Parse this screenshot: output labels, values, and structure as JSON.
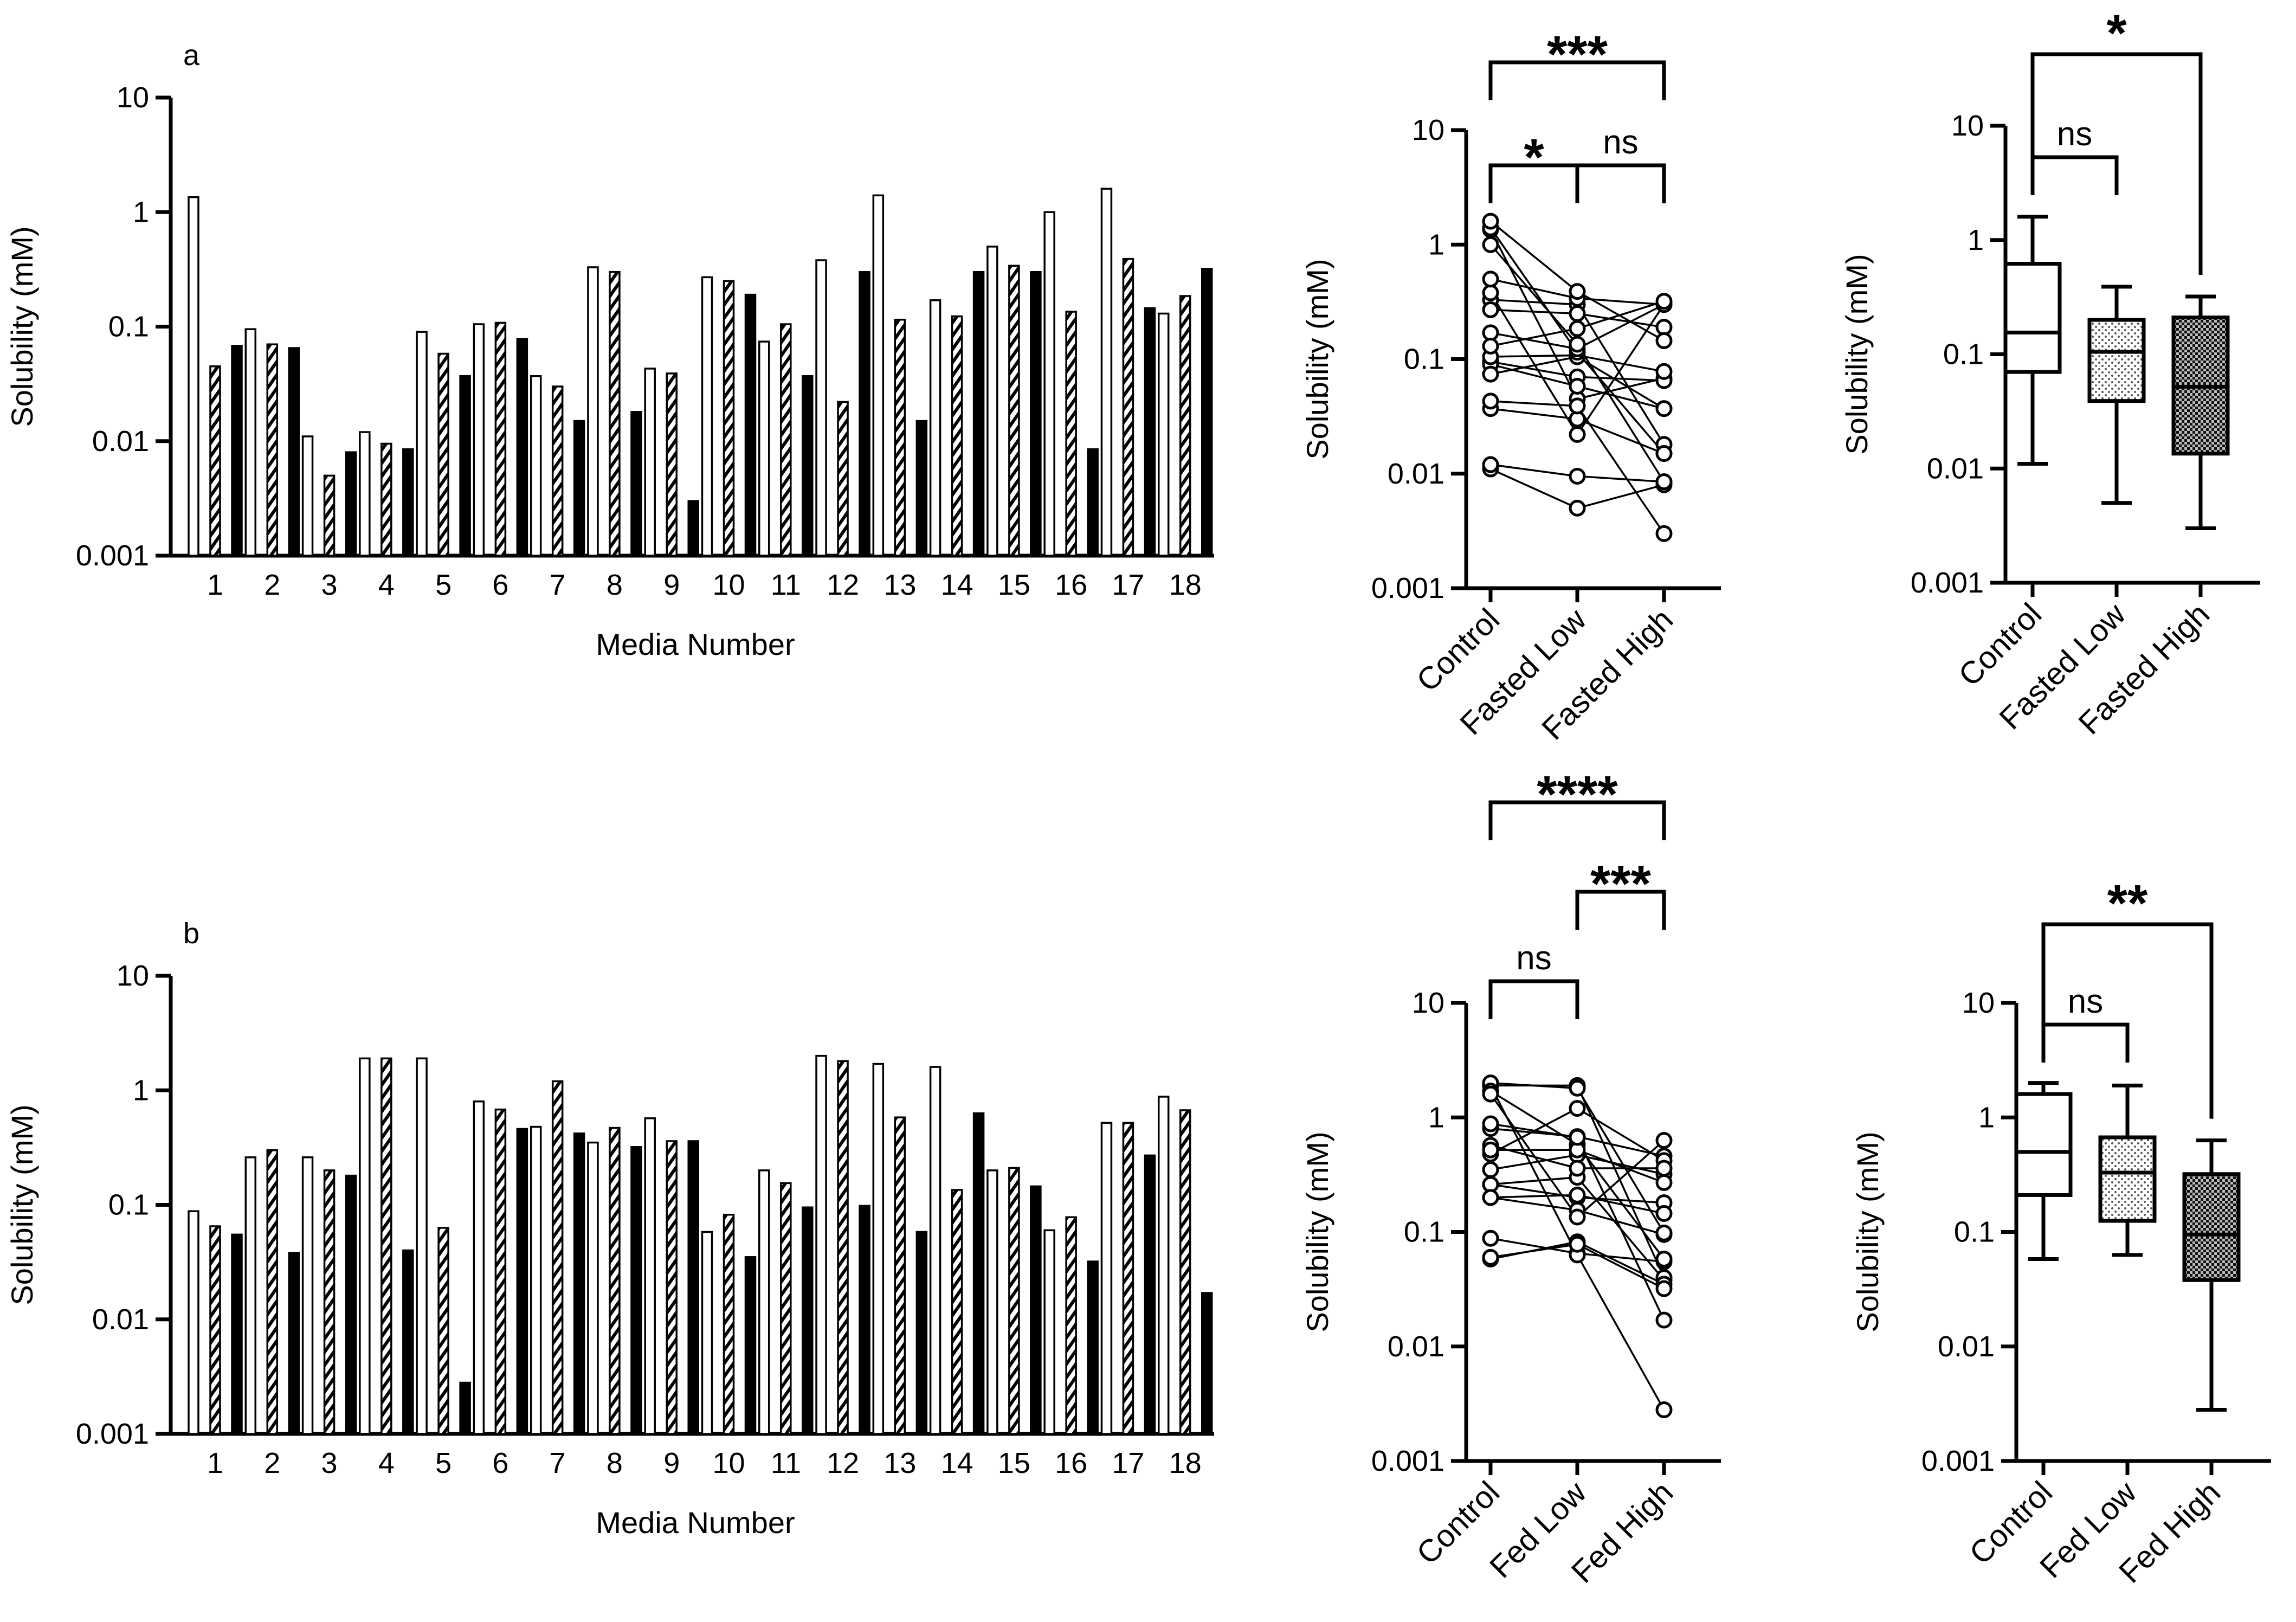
{
  "chart_data": [
    {
      "id": "a",
      "type": "bar",
      "panel_label": "a",
      "title": "",
      "xlabel": "Media Number",
      "ylabel": "Solubility (mM)",
      "yscale": "log",
      "ylim": [
        0.001,
        10
      ],
      "yticks": [
        "0.001",
        "0.01",
        "0.1",
        "1",
        "10"
      ],
      "categories": [
        "1",
        "2",
        "3",
        "4",
        "5",
        "6",
        "7",
        "8",
        "9",
        "10",
        "11",
        "12",
        "13",
        "14",
        "15",
        "16",
        "17",
        "18"
      ],
      "series": [
        {
          "name": "Control",
          "pattern": "open",
          "values": [
            1.35,
            0.095,
            0.011,
            0.012,
            0.09,
            0.105,
            0.037,
            0.33,
            0.043,
            0.27,
            0.074,
            0.38,
            1.4,
            0.17,
            0.5,
            1.0,
            1.6,
            0.13
          ]
        },
        {
          "name": "Fasted Low",
          "pattern": "hatched",
          "values": [
            0.045,
            0.07,
            0.005,
            0.0095,
            0.058,
            0.108,
            0.03,
            0.3,
            0.039,
            0.25,
            0.105,
            0.022,
            0.115,
            0.123,
            0.34,
            0.135,
            0.39,
            0.185
          ]
        },
        {
          "name": "Fasted High",
          "pattern": "filled",
          "values": [
            0.068,
            0.065,
            0.008,
            0.0085,
            0.037,
            0.078,
            0.015,
            0.018,
            0.003,
            0.19,
            0.037,
            0.3,
            0.015,
            0.3,
            0.3,
            0.0085,
            0.145,
            0.32
          ]
        }
      ]
    },
    {
      "id": "a-paired",
      "type": "scatter",
      "title": "",
      "ylabel": "Solubility (mM)",
      "yscale": "log",
      "ylim": [
        0.001,
        10
      ],
      "yticks": [
        "0.001",
        "0.01",
        "0.1",
        "1",
        "10"
      ],
      "categories": [
        "Control",
        "Fasted Low",
        "Fasted High"
      ],
      "pairs": [
        [
          1.35,
          0.045,
          0.068
        ],
        [
          0.095,
          0.07,
          0.065
        ],
        [
          0.011,
          0.005,
          0.008
        ],
        [
          0.012,
          0.0095,
          0.0085
        ],
        [
          0.09,
          0.058,
          0.037
        ],
        [
          0.105,
          0.108,
          0.078
        ],
        [
          0.037,
          0.03,
          0.015
        ],
        [
          0.33,
          0.3,
          0.018
        ],
        [
          0.043,
          0.039,
          0.003
        ],
        [
          0.27,
          0.25,
          0.19
        ],
        [
          0.074,
          0.105,
          0.037
        ],
        [
          0.38,
          0.022,
          0.3
        ],
        [
          1.4,
          0.115,
          0.015
        ],
        [
          0.17,
          0.123,
          0.3
        ],
        [
          0.5,
          0.34,
          0.3
        ],
        [
          1.0,
          0.135,
          0.0085
        ],
        [
          1.6,
          0.39,
          0.145
        ],
        [
          0.13,
          0.185,
          0.32
        ]
      ],
      "significance": [
        {
          "from": 0,
          "to": 2,
          "label": "***",
          "level": 0
        },
        {
          "from": 0,
          "to": 1,
          "label": "*",
          "level": 1
        },
        {
          "from": 1,
          "to": 2,
          "label": "ns",
          "level": 1
        }
      ]
    },
    {
      "id": "a-box",
      "type": "box",
      "title": "",
      "ylabel": "Solubility (mM)",
      "yscale": "log",
      "ylim": [
        0.001,
        10
      ],
      "yticks": [
        "0.001",
        "0.01",
        "0.1",
        "1",
        "10"
      ],
      "categories": [
        "Control",
        "Fasted Low",
        "Fasted High"
      ],
      "boxes": [
        {
          "min": 0.011,
          "q1": 0.07,
          "median": 0.155,
          "q3": 0.62,
          "max": 1.6,
          "fill": "white"
        },
        {
          "min": 0.005,
          "q1": 0.039,
          "median": 0.105,
          "q3": 0.2,
          "max": 0.39,
          "fill": "dotted"
        },
        {
          "min": 0.003,
          "q1": 0.0135,
          "median": 0.052,
          "q3": 0.21,
          "max": 0.32,
          "fill": "cross"
        }
      ],
      "significance": [
        {
          "from": 0,
          "to": 2,
          "label": "*",
          "level": 0
        },
        {
          "from": 0,
          "to": 1,
          "label": "ns",
          "level": 1
        }
      ]
    },
    {
      "id": "b",
      "type": "bar",
      "panel_label": "b",
      "title": "",
      "xlabel": "Media Number",
      "ylabel": "Solubility (mM)",
      "yscale": "log",
      "ylim": [
        0.001,
        10
      ],
      "yticks": [
        "0.001",
        "0.01",
        "0.1",
        "1",
        "10"
      ],
      "categories": [
        "1",
        "2",
        "3",
        "4",
        "5",
        "6",
        "7",
        "8",
        "9",
        "10",
        "11",
        "12",
        "13",
        "14",
        "15",
        "16",
        "17",
        "18"
      ],
      "series": [
        {
          "name": "Control",
          "pattern": "open",
          "values": [
            0.088,
            0.26,
            0.26,
            1.9,
            1.9,
            0.8,
            0.48,
            0.35,
            0.57,
            0.058,
            0.2,
            2.0,
            1.7,
            1.6,
            0.2,
            0.06,
            0.52,
            0.88
          ]
        },
        {
          "name": "Fed Low",
          "pattern": "hatched",
          "values": [
            0.065,
            0.3,
            0.2,
            1.9,
            0.063,
            0.68,
            1.2,
            0.47,
            0.36,
            0.082,
            0.155,
            1.8,
            0.58,
            0.135,
            0.21,
            0.078,
            0.52,
            0.67
          ]
        },
        {
          "name": "Fed High",
          "pattern": "filled",
          "values": [
            0.055,
            0.038,
            0.18,
            0.04,
            0.0028,
            0.46,
            0.42,
            0.32,
            0.36,
            0.035,
            0.095,
            0.098,
            0.058,
            0.63,
            0.145,
            0.032,
            0.27,
            0.017
          ]
        }
      ]
    },
    {
      "id": "b-paired",
      "type": "scatter",
      "title": "",
      "ylabel": "Solubility (mM)",
      "yscale": "log",
      "ylim": [
        0.001,
        10
      ],
      "yticks": [
        "0.001",
        "0.01",
        "0.1",
        "1",
        "10"
      ],
      "categories": [
        "Control",
        "Fed Low",
        "Fed High"
      ],
      "pairs": [
        [
          0.088,
          0.065,
          0.055
        ],
        [
          0.26,
          0.3,
          0.038
        ],
        [
          0.26,
          0.2,
          0.18
        ],
        [
          1.9,
          1.9,
          0.04
        ],
        [
          1.9,
          0.063,
          0.0028
        ],
        [
          0.8,
          0.68,
          0.46
        ],
        [
          0.48,
          1.2,
          0.42
        ],
        [
          0.35,
          0.47,
          0.32
        ],
        [
          0.57,
          0.36,
          0.36
        ],
        [
          0.058,
          0.082,
          0.035
        ],
        [
          0.2,
          0.155,
          0.095
        ],
        [
          2.0,
          1.8,
          0.098
        ],
        [
          1.7,
          0.58,
          0.058
        ],
        [
          1.6,
          0.135,
          0.63
        ],
        [
          0.2,
          0.21,
          0.145
        ],
        [
          0.06,
          0.078,
          0.032
        ],
        [
          0.52,
          0.52,
          0.27
        ],
        [
          0.88,
          0.67,
          0.017
        ]
      ],
      "significance": [
        {
          "from": 0,
          "to": 2,
          "label": "****",
          "level": 0
        },
        {
          "from": 1,
          "to": 2,
          "label": "***",
          "level": 1
        },
        {
          "from": 0,
          "to": 1,
          "label": "ns",
          "level": 2
        }
      ]
    },
    {
      "id": "b-box",
      "type": "box",
      "title": "",
      "ylabel": "Solubility (mM)",
      "yscale": "log",
      "ylim": [
        0.001,
        10
      ],
      "yticks": [
        "0.001",
        "0.01",
        "0.1",
        "1",
        "10"
      ],
      "categories": [
        "Control",
        "Fed Low",
        "Fed High"
      ],
      "boxes": [
        {
          "min": 0.058,
          "q1": 0.21,
          "median": 0.5,
          "q3": 1.6,
          "max": 2.0,
          "fill": "white"
        },
        {
          "min": 0.063,
          "q1": 0.125,
          "median": 0.33,
          "q3": 0.67,
          "max": 1.9,
          "fill": "dotted"
        },
        {
          "min": 0.0028,
          "q1": 0.038,
          "median": 0.095,
          "q3": 0.32,
          "max": 0.63,
          "fill": "cross"
        }
      ],
      "significance": [
        {
          "from": 0,
          "to": 2,
          "label": "**",
          "level": 0
        },
        {
          "from": 0,
          "to": 1,
          "label": "ns",
          "level": 1
        }
      ]
    }
  ]
}
